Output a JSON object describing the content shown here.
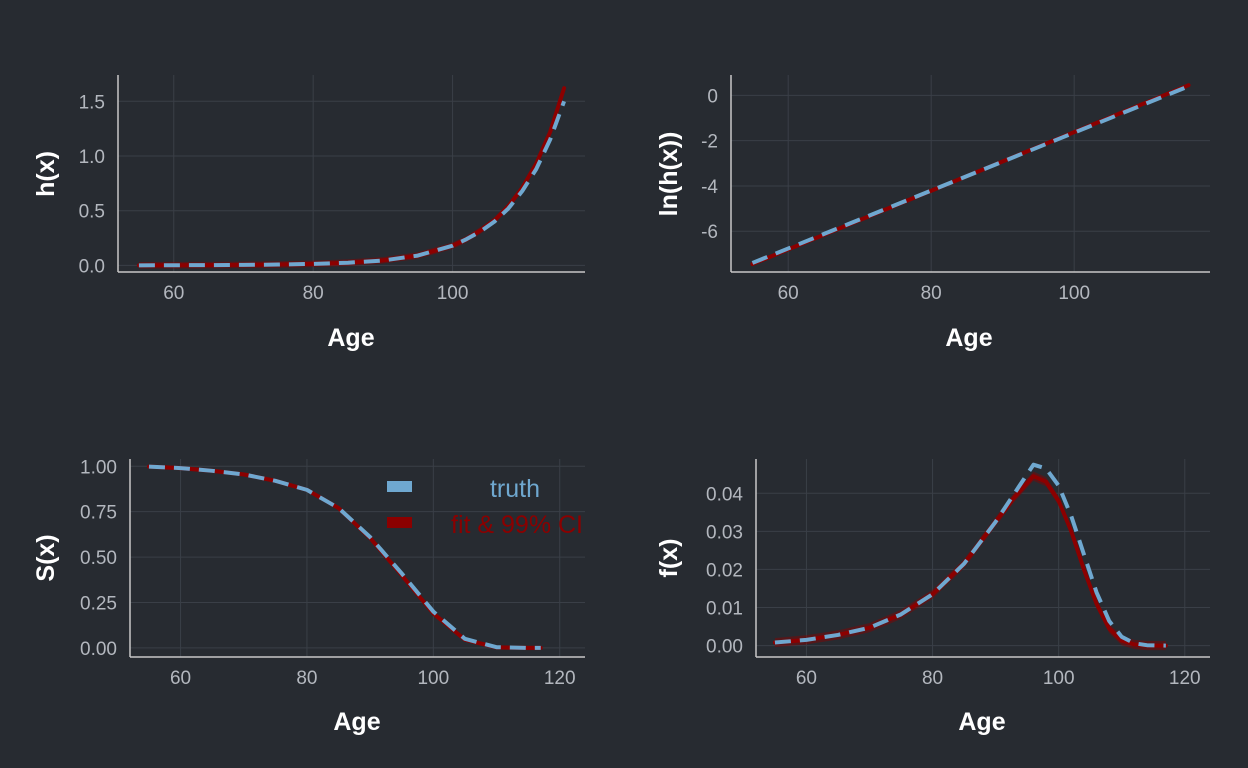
{
  "theme": {
    "background": "#272b31",
    "grid_color": "#3a3f47",
    "axis_color": "#c8c8c8",
    "truth_color": "#6fa8d0",
    "fit_color": "#8b0000"
  },
  "legend": {
    "placement": "top-right of bottom-left panel",
    "entries": [
      {
        "label": "truth",
        "color": "#6fa8d0"
      },
      {
        "label": "fit & 99% CI",
        "color": "#8b0000"
      }
    ]
  },
  "chart_data": [
    {
      "id": "hazard",
      "type": "line",
      "xlabel": "Age",
      "ylabel": "h(x)",
      "xlim": [
        52,
        119
      ],
      "ylim": [
        -0.06,
        1.74
      ],
      "xticks": [
        60,
        80,
        100
      ],
      "yticks": [
        0.0,
        0.5,
        1.0,
        1.5
      ],
      "ytick_labels": [
        "0.0",
        "0.5",
        "1.0",
        "1.5"
      ],
      "grid": true,
      "x": [
        55,
        60,
        65,
        70,
        75,
        80,
        85,
        90,
        95,
        100,
        102,
        104,
        106,
        108,
        110,
        112,
        114,
        116
      ],
      "series": [
        {
          "name": "truth",
          "style": "dashed",
          "values": [
            0.001,
            0.002,
            0.003,
            0.005,
            0.008,
            0.014,
            0.025,
            0.045,
            0.09,
            0.18,
            0.24,
            0.31,
            0.4,
            0.52,
            0.68,
            0.88,
            1.15,
            1.5
          ]
        },
        {
          "name": "fit & 99% CI",
          "style": "solid",
          "band": 0.03,
          "values": [
            0.001,
            0.002,
            0.003,
            0.005,
            0.008,
            0.014,
            0.025,
            0.046,
            0.09,
            0.18,
            0.24,
            0.32,
            0.41,
            0.54,
            0.71,
            0.93,
            1.22,
            1.62
          ]
        }
      ]
    },
    {
      "id": "log-hazard",
      "type": "line",
      "xlabel": "Age",
      "ylabel": "ln(h(x))",
      "xlim": [
        52,
        119
      ],
      "ylim": [
        -7.8,
        0.9
      ],
      "xticks": [
        60,
        80,
        100
      ],
      "yticks": [
        0,
        -2,
        -4,
        -6
      ],
      "ytick_labels": [
        "0",
        "-2",
        "-4",
        "-6"
      ],
      "grid": true,
      "x": [
        55,
        116
      ],
      "series": [
        {
          "name": "truth",
          "style": "dashed",
          "values": [
            -7.4,
            0.4
          ]
        },
        {
          "name": "fit & 99% CI",
          "style": "solid",
          "values": [
            -7.45,
            0.45
          ]
        }
      ]
    },
    {
      "id": "survival",
      "type": "line",
      "xlabel": "Age",
      "ylabel": "S(x)",
      "xlim": [
        52,
        124
      ],
      "ylim": [
        -0.05,
        1.04
      ],
      "xticks": [
        60,
        80,
        100,
        120
      ],
      "yticks": [
        0.0,
        0.25,
        0.5,
        0.75,
        1.0
      ],
      "ytick_labels": [
        "0.00",
        "0.25",
        "0.50",
        "0.75",
        "1.00"
      ],
      "grid": true,
      "x": [
        55,
        60,
        65,
        70,
        75,
        80,
        85,
        90,
        95,
        100,
        105,
        110,
        115,
        117
      ],
      "series": [
        {
          "name": "truth",
          "style": "dashed",
          "values": [
            0.998,
            0.99,
            0.975,
            0.955,
            0.92,
            0.87,
            0.77,
            0.61,
            0.41,
            0.2,
            0.05,
            0.004,
            0.0,
            0.0
          ]
        },
        {
          "name": "fit & 99% CI",
          "style": "solid",
          "band": 0.012,
          "values": [
            0.998,
            0.99,
            0.975,
            0.955,
            0.92,
            0.87,
            0.77,
            0.605,
            0.4,
            0.19,
            0.045,
            0.003,
            0.0,
            0.0
          ]
        }
      ]
    },
    {
      "id": "density",
      "type": "line",
      "xlabel": "Age",
      "ylabel": "f(x)",
      "xlim": [
        52,
        124
      ],
      "ylim": [
        -0.003,
        0.049
      ],
      "xticks": [
        60,
        80,
        100,
        120
      ],
      "yticks": [
        0.0,
        0.01,
        0.02,
        0.03,
        0.04
      ],
      "ytick_labels": [
        "0.00",
        "0.01",
        "0.02",
        "0.03",
        "0.04"
      ],
      "grid": true,
      "x": [
        55,
        60,
        65,
        70,
        75,
        80,
        85,
        90,
        93,
        96,
        98,
        100,
        102,
        104,
        106,
        108,
        110,
        112,
        114,
        117
      ],
      "series": [
        {
          "name": "truth",
          "style": "dashed",
          "values": [
            0.0008,
            0.0015,
            0.0028,
            0.0047,
            0.0082,
            0.0135,
            0.0215,
            0.0325,
            0.04,
            0.0475,
            0.0465,
            0.042,
            0.034,
            0.024,
            0.014,
            0.0065,
            0.0023,
            0.0006,
            0.0001,
            0.0
          ]
        },
        {
          "name": "fit & 99% CI",
          "style": "solid",
          "band": 0.0012,
          "values": [
            0.0008,
            0.0015,
            0.0028,
            0.0047,
            0.0082,
            0.0135,
            0.0215,
            0.0325,
            0.039,
            0.0445,
            0.043,
            0.038,
            0.03,
            0.02,
            0.011,
            0.0045,
            0.0013,
            0.0003,
            0.0,
            0.0
          ]
        }
      ]
    }
  ]
}
